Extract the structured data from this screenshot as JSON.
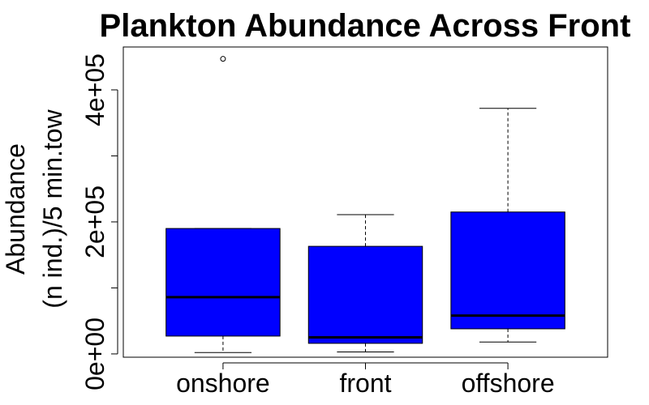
{
  "chart_data": {
    "type": "boxplot",
    "title": "Plankton Abundance Across Front",
    "ylabel_lines": [
      "Abundance",
      "(n ind.)/5 min.tow"
    ],
    "xlabel": "",
    "categories": [
      "onshore",
      "front",
      "offshore"
    ],
    "boxes": [
      {
        "category": "onshore",
        "whisker_low": 2000,
        "q1": 27000,
        "median": 86000,
        "q3": 190000,
        "whisker_high": 190000,
        "outliers": [
          447000
        ]
      },
      {
        "category": "front",
        "whisker_low": 3000,
        "q1": 16000,
        "median": 25000,
        "q3": 163000,
        "whisker_high": 211000,
        "outliers": []
      },
      {
        "category": "offshore",
        "whisker_low": 18000,
        "q1": 38000,
        "median": 58000,
        "q3": 215000,
        "whisker_high": 372000,
        "outliers": []
      }
    ],
    "ylim": [
      -5000,
      465000
    ],
    "y_ticks": [
      0,
      100000,
      200000,
      300000,
      400000
    ],
    "y_tick_labels": [
      {
        "value": 0,
        "label": "0e+00"
      },
      {
        "value": 200000,
        "label": "2e+05"
      },
      {
        "value": 400000,
        "label": "4e+05"
      }
    ],
    "box_fill": "#0000ff",
    "grid": false
  }
}
